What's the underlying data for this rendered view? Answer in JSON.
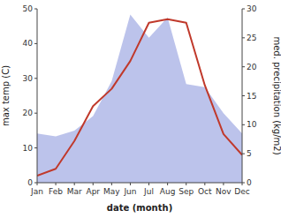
{
  "chart_data": {
    "type": "line",
    "xlabel": "date (month)",
    "ylabel": "max temp (C)",
    "y2label": "med. precipitation (kg/m2)",
    "categories": [
      "Jan",
      "Feb",
      "Mar",
      "Apr",
      "May",
      "Jun",
      "Jul",
      "Aug",
      "Sep",
      "Oct",
      "Nov",
      "Dec"
    ],
    "series": [
      {
        "type": "area",
        "axis": "y2",
        "color": "#b0b8e8",
        "values": [
          8.5,
          8,
          9,
          11.5,
          17.5,
          29,
          25,
          28.5,
          17,
          16.5,
          12,
          8.5
        ]
      },
      {
        "type": "line",
        "color": "#c0392b",
        "values": [
          2,
          4,
          12,
          22,
          27,
          35,
          46,
          47,
          46,
          28,
          14,
          8
        ]
      }
    ],
    "ylim": [
      0,
      50
    ],
    "yticks": [
      0,
      10,
      20,
      30,
      40,
      50
    ],
    "y2lim": [
      0,
      30
    ],
    "y2ticks": [
      0,
      5,
      10,
      15,
      20,
      25,
      30
    ],
    "grid": false
  }
}
